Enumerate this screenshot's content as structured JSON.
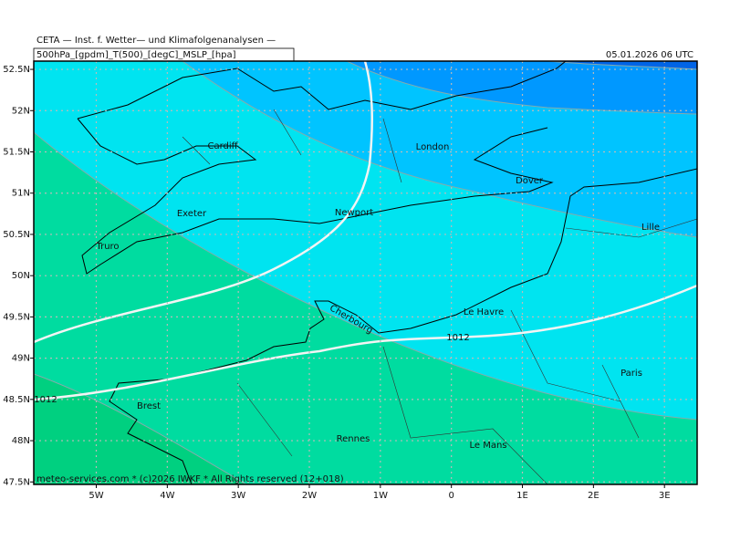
{
  "header": {
    "title": "CETA — Inst. f. Wetter— und Klimafolgenanalysen —",
    "fields": "500hPa_[gpdm]_T(500)_[degC]_MSLP_[hpa]",
    "valid_time": "05.01.2026 06 UTC"
  },
  "footer": "meteo-services.com * (c)2026 IWKF * All Rights reserved (12+018)",
  "axes": {
    "xlim": [
      -5.88,
      3.46
    ],
    "ylim": [
      47.47,
      52.6
    ],
    "xticks": [
      {
        "value": -5,
        "label": "5W"
      },
      {
        "value": -4,
        "label": "4W"
      },
      {
        "value": -3,
        "label": "3W"
      },
      {
        "value": -2,
        "label": "2W"
      },
      {
        "value": -1,
        "label": "1W"
      },
      0,
      {
        "value": 1,
        "label": "1E"
      },
      {
        "value": 2,
        "label": "2E"
      },
      {
        "value": 3,
        "label": "3E"
      }
    ],
    "yticks": [
      {
        "value": 47.5,
        "label": "47.5N"
      },
      {
        "value": 48,
        "label": "48N"
      },
      {
        "value": 48.5,
        "label": "48.5N"
      },
      {
        "value": 49,
        "label": "49N"
      },
      {
        "value": 49.5,
        "label": "49.5N"
      },
      {
        "value": 50,
        "label": "50N"
      },
      {
        "value": 50.5,
        "label": "50.5N"
      },
      {
        "value": 51,
        "label": "51N"
      },
      {
        "value": 51.5,
        "label": "51.5N"
      },
      {
        "value": 52,
        "label": "52N"
      },
      {
        "value": 52.5,
        "label": "52.5N"
      }
    ]
  },
  "places": [
    "Cardiff",
    "London",
    "Dover",
    "Exeter",
    "Newport",
    "Lille",
    "Truro",
    "Le Havre",
    "Cherbourg",
    "Paris",
    "Brest",
    "Rennes",
    "Le Mans"
  ],
  "isobar_labels": [
    "1012",
    "1012"
  ]
}
